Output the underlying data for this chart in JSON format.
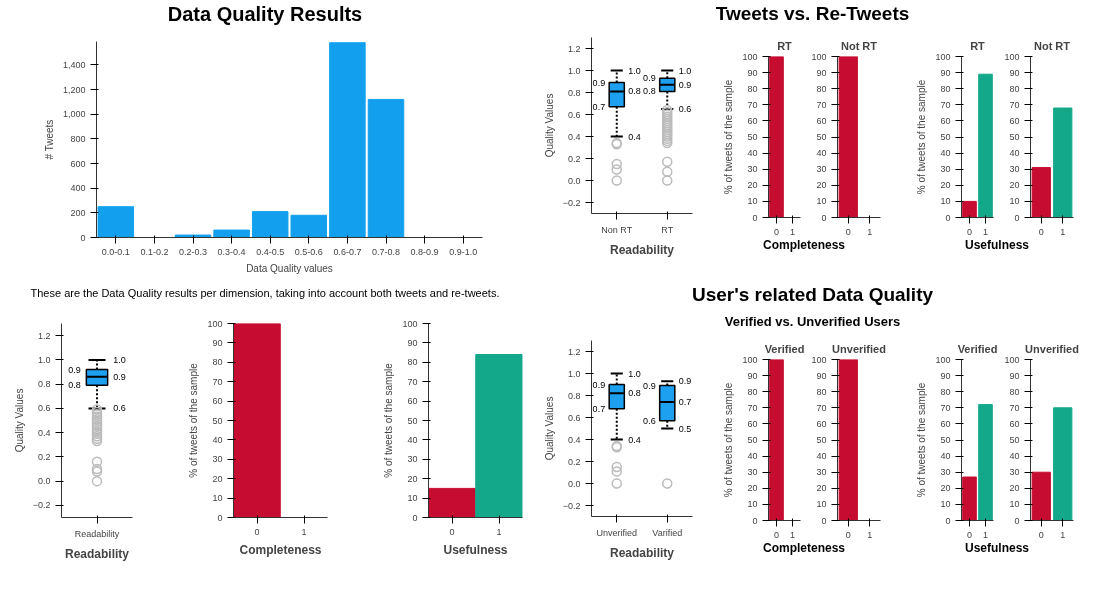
{
  "chart_data": [
    {
      "type": "bar",
      "title": "Data Quality Results",
      "categories": [
        "0.0-0.1",
        "0.1-0.2",
        "0.2-0.3",
        "0.3-0.4",
        "0.4-0.5",
        "0.5-0.6",
        "0.6-0.7",
        "0.7-0.8",
        "0.8-0.9",
        "0.9-1.0"
      ],
      "values": [
        250,
        0,
        20,
        60,
        210,
        180,
        1580,
        1120,
        0,
        0
      ],
      "color": "#12a0ee",
      "xlabel": "Data Quality values",
      "ylabel": "# Tweets",
      "ylim": [
        0,
        1590
      ],
      "yticks": [
        0,
        200,
        400,
        600,
        800,
        {
          "value": 1000,
          "label": "1,000"
        },
        {
          "value": 1200,
          "label": "1,200"
        },
        {
          "value": 1400,
          "label": "1,400"
        }
      ],
      "grid": false,
      "annotations": [
        "These are the Data Quality results per dimension, taking into account both tweets and re-tweets."
      ]
    },
    {
      "type": "box",
      "categories": [
        "Non RT",
        "RT"
      ],
      "series": [
        {
          "color": "#1ea0f0",
          "boxes": [
            {
              "low": 0.4,
              "q1": 0.67,
              "median": 0.81,
              "q3": 0.89,
              "high": 1.0,
              "outliers": [
                0.34,
                0.33,
                0.15,
                0.1,
                0.0
              ]
            },
            {
              "low": 0.65,
              "q1": 0.81,
              "median": 0.87,
              "q3": 0.93,
              "high": 1.0,
              "outliers": [
                0.64,
                0.62,
                0.6,
                0.58,
                0.56,
                0.54,
                0.52,
                0.5,
                0.48,
                0.46,
                0.44,
                0.42,
                0.4,
                0.38,
                0.36,
                0.34,
                0.17,
                0.08,
                0.0
              ]
            }
          ]
        }
      ],
      "value_labels": [
        [
          "1.0",
          "0.9",
          "0.8",
          "0.7",
          "0.4"
        ],
        [
          "1.0",
          "0.9",
          "0.9",
          "0.8",
          "0.6"
        ]
      ],
      "xlabel": "Readability",
      "ylabel": "Quality Values",
      "ylim": [
        -0.3,
        1.3
      ],
      "yticks": [
        -0.2,
        {
          "value": 0,
          "label": "0.0"
        },
        0.2,
        0.4,
        0.6,
        0.8,
        {
          "value": 1,
          "label": "1.0"
        },
        1.2
      ],
      "grid": false
    },
    {
      "type": "bar",
      "title": "RT",
      "annotations": [
        "Tweets vs. Re-Tweets"
      ],
      "categories": [
        "0",
        "1"
      ],
      "values": [
        100,
        0
      ],
      "colors": [
        "#c60c30",
        "#13a88a"
      ],
      "xlabel": "Completeness",
      "ylabel": "% of tweets of the sample",
      "ylim": [
        0,
        100
      ],
      "yticks": [
        0,
        10,
        20,
        30,
        40,
        50,
        60,
        70,
        80,
        90,
        100
      ],
      "grid": false
    },
    {
      "type": "bar",
      "title": "Not RT",
      "categories": [
        "0",
        "1"
      ],
      "values": [
        100,
        0
      ],
      "colors": [
        "#c60c30",
        "#13a88a"
      ],
      "ylim": [
        0,
        100
      ],
      "yticks": [
        0,
        10,
        20,
        30,
        40,
        50,
        60,
        70,
        80,
        90,
        100
      ],
      "grid": false
    },
    {
      "type": "bar",
      "title": "RT",
      "categories": [
        "0",
        "1"
      ],
      "values": [
        10,
        89
      ],
      "colors": [
        "#c60c30",
        "#13a88a"
      ],
      "xlabel": "Usefulness",
      "ylabel": "% of tweets of the sample",
      "ylim": [
        0,
        100
      ],
      "yticks": [
        0,
        10,
        20,
        30,
        40,
        50,
        60,
        70,
        80,
        90,
        100
      ],
      "grid": false
    },
    {
      "type": "bar",
      "title": "Not RT",
      "categories": [
        "0",
        "1"
      ],
      "values": [
        31,
        68
      ],
      "colors": [
        "#c60c30",
        "#13a88a"
      ],
      "ylim": [
        0,
        100
      ],
      "yticks": [
        0,
        10,
        20,
        30,
        40,
        50,
        60,
        70,
        80,
        90,
        100
      ],
      "grid": false
    },
    {
      "type": "box",
      "categories": [
        "Readability"
      ],
      "series": [
        {
          "color": "#1ea0f0",
          "boxes": [
            {
              "low": 0.6,
              "q1": 0.79,
              "median": 0.86,
              "q3": 0.92,
              "high": 1.0,
              "outliers": [
                0.59,
                0.57,
                0.55,
                0.53,
                0.51,
                0.49,
                0.47,
                0.45,
                0.43,
                0.41,
                0.39,
                0.37,
                0.35,
                0.33,
                0.16,
                0.1,
                0.08,
                0.0
              ]
            }
          ]
        }
      ],
      "value_labels": [
        [
          "1.0",
          "0.9",
          "0.9",
          "0.8",
          "0.6"
        ]
      ],
      "xlabel": "Readability",
      "ylabel": "Quality Values",
      "ylim": [
        -0.3,
        1.3
      ],
      "yticks": [
        -0.2,
        {
          "value": 0,
          "label": "0.0"
        },
        0.2,
        0.4,
        0.6,
        0.8,
        {
          "value": 1,
          "label": "1.0"
        },
        1.2
      ],
      "grid": false
    },
    {
      "type": "bar",
      "categories": [
        "0",
        "1"
      ],
      "values": [
        100,
        0
      ],
      "colors": [
        "#c60c30",
        "#13a88a"
      ],
      "xlabel": "Completeness",
      "ylabel": "% of tweets of the sample",
      "ylim": [
        0,
        100
      ],
      "yticks": [
        0,
        10,
        20,
        30,
        40,
        50,
        60,
        70,
        80,
        90,
        100
      ],
      "grid": false
    },
    {
      "type": "bar",
      "categories": [
        "0",
        "1"
      ],
      "values": [
        15,
        84
      ],
      "colors": [
        "#c60c30",
        "#13a88a"
      ],
      "xlabel": "Usefulness",
      "ylabel": "% of tweets of the sample",
      "ylim": [
        0,
        100
      ],
      "yticks": [
        0,
        10,
        20,
        30,
        40,
        50,
        60,
        70,
        80,
        90,
        100
      ],
      "grid": false
    },
    {
      "type": "box",
      "categories": [
        "Unverified",
        "Varified"
      ],
      "series": [
        {
          "color": "#1ea0f0",
          "boxes": [
            {
              "low": 0.4,
              "q1": 0.68,
              "median": 0.82,
              "q3": 0.9,
              "high": 1.0,
              "outliers": [
                0.34,
                0.33,
                0.15,
                0.11,
                0.0
              ]
            },
            {
              "low": 0.5,
              "q1": 0.57,
              "median": 0.74,
              "q3": 0.89,
              "high": 0.93,
              "outliers": [
                0.0
              ]
            }
          ]
        }
      ],
      "value_labels": [
        [
          "1.0",
          "0.9",
          "0.8",
          "0.7",
          "0.4"
        ],
        [
          "0.9",
          "0.9",
          "0.7",
          "0.6",
          "0.5"
        ]
      ],
      "xlabel": "Readability",
      "ylabel": "Quality Values",
      "ylim": [
        -0.3,
        1.3
      ],
      "yticks": [
        -0.2,
        {
          "value": 0,
          "label": "0.0"
        },
        0.2,
        0.4,
        0.6,
        0.8,
        {
          "value": 1,
          "label": "1.0"
        },
        1.2
      ],
      "grid": false
    },
    {
      "type": "bar",
      "title": "Verified",
      "annotations": [
        "User's related Data Quality",
        "Verified vs. Unverified Users"
      ],
      "categories": [
        "0",
        "1"
      ],
      "values": [
        100,
        0
      ],
      "colors": [
        "#c60c30",
        "#13a88a"
      ],
      "xlabel": "Completeness",
      "ylabel": "% of tweets of the sample",
      "ylim": [
        0,
        100
      ],
      "yticks": [
        0,
        10,
        20,
        30,
        40,
        50,
        60,
        70,
        80,
        90,
        100
      ],
      "grid": false
    },
    {
      "type": "bar",
      "title": "Unverified",
      "categories": [
        "0",
        "1"
      ],
      "values": [
        100,
        0
      ],
      "colors": [
        "#c60c30",
        "#13a88a"
      ],
      "ylim": [
        0,
        100
      ],
      "yticks": [
        0,
        10,
        20,
        30,
        40,
        50,
        60,
        70,
        80,
        90,
        100
      ],
      "grid": false
    },
    {
      "type": "bar",
      "title": "Verified",
      "categories": [
        "0",
        "1"
      ],
      "values": [
        27,
        72
      ],
      "colors": [
        "#c60c30",
        "#13a88a"
      ],
      "xlabel": "Usefulness",
      "ylabel": "% of tweets of the sample",
      "ylim": [
        0,
        100
      ],
      "yticks": [
        0,
        10,
        20,
        30,
        40,
        50,
        60,
        70,
        80,
        90,
        100
      ],
      "grid": false
    },
    {
      "type": "bar",
      "title": "Unverified",
      "categories": [
        "0",
        "1"
      ],
      "values": [
        30,
        70
      ],
      "colors": [
        "#c60c30",
        "#13a88a"
      ],
      "ylim": [
        0,
        100
      ],
      "yticks": [
        0,
        10,
        20,
        30,
        40,
        50,
        60,
        70,
        80,
        90,
        100
      ],
      "grid": false
    }
  ]
}
